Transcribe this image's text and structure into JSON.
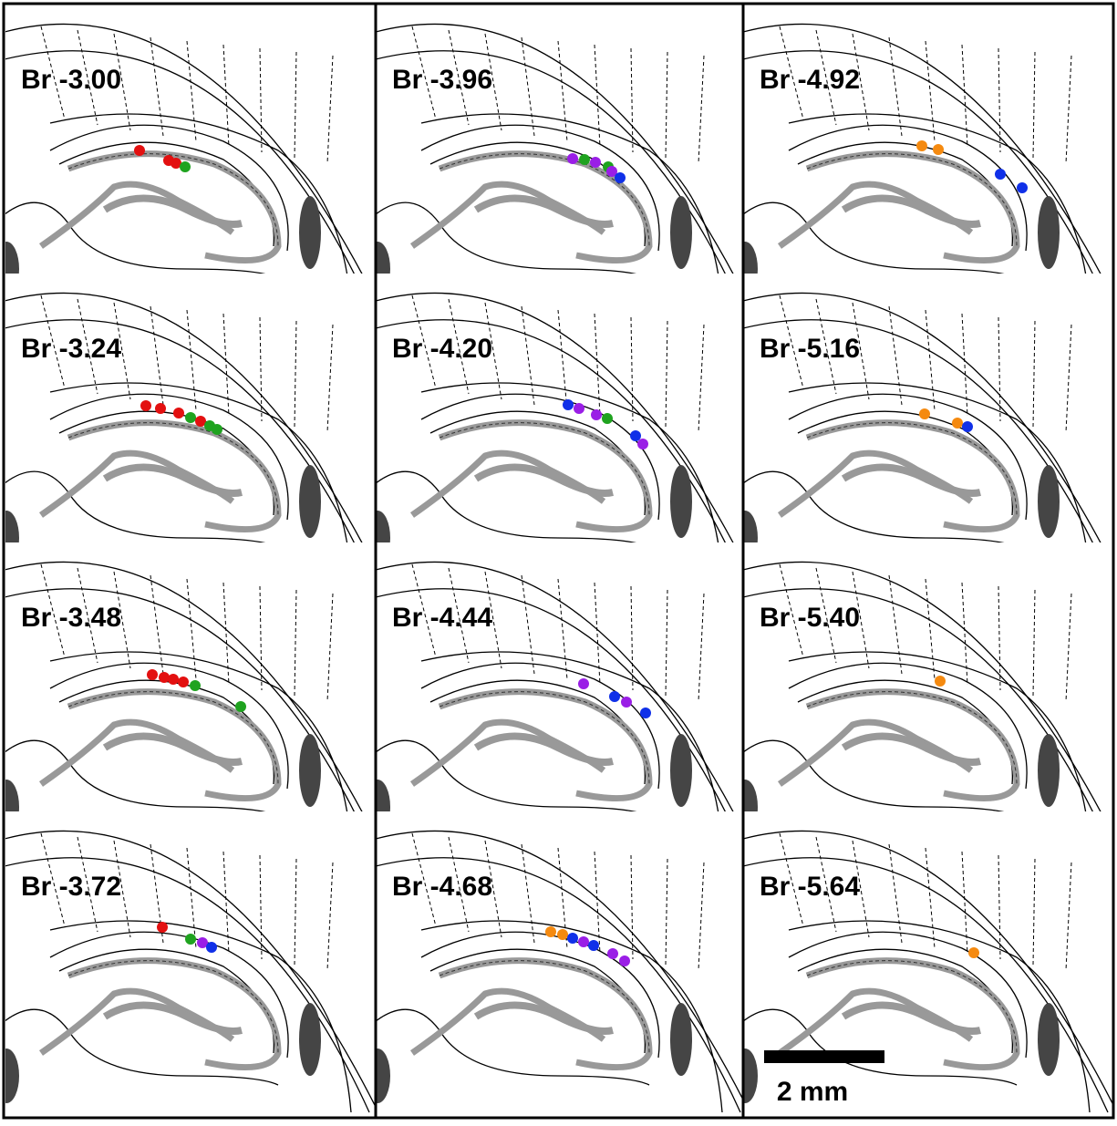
{
  "panels": [
    {
      "label": "Br -3.00"
    },
    {
      "label": "Br -3.24"
    },
    {
      "label": "Br -3.48"
    },
    {
      "label": "Br -3.72"
    },
    {
      "label": "Br -3.96"
    },
    {
      "label": "Br -4.20"
    },
    {
      "label": "Br -4.44"
    },
    {
      "label": "Br -4.68"
    },
    {
      "label": "Br -4.92"
    },
    {
      "label": "Br -5.16"
    },
    {
      "label": "Br -5.40"
    },
    {
      "label": "Br -5.64"
    }
  ],
  "scale_bar": {
    "label": "2 mm"
  }
}
